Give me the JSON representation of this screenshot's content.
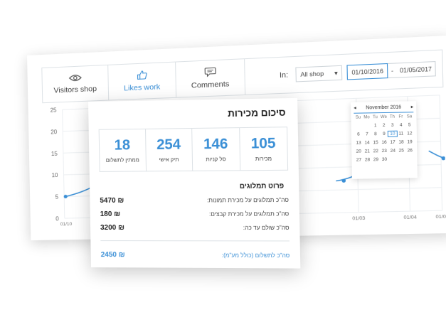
{
  "tabs": [
    {
      "label": "Visitors shop",
      "icon": "eye-icon"
    },
    {
      "label": "Likes work",
      "icon": "thumbs-up-icon"
    },
    {
      "label": "Comments",
      "icon": "comment-icon"
    }
  ],
  "filter": {
    "in_label": "In:",
    "shop_select": "All shop",
    "date_from": "01/10/2016",
    "date_separator": "-",
    "date_to": "01/05/2017"
  },
  "calendar": {
    "month": "November 2016",
    "prev": "◂",
    "next": "▸",
    "days_of_week": [
      "Su",
      "Mo",
      "Tu",
      "We",
      "Th",
      "Fr",
      "Sa"
    ],
    "dates": [
      "",
      "",
      "1",
      "2",
      "3",
      "4",
      "5",
      "6",
      "7",
      "8",
      "9",
      "10",
      "11",
      "12",
      "13",
      "14",
      "15",
      "16",
      "17",
      "18",
      "19",
      "20",
      "21",
      "22",
      "23",
      "24",
      "25",
      "26",
      "27",
      "28",
      "29",
      "30",
      "",
      "",
      ""
    ],
    "selected": "10"
  },
  "chart_data": {
    "type": "line",
    "y_ticks": [
      "25",
      "20",
      "15",
      "10",
      "5",
      "0"
    ],
    "x_ticks": [
      "01/10",
      "01/03",
      "01/04",
      "01/05"
    ],
    "ylim": [
      0,
      25
    ],
    "color": "#3a8fd6"
  },
  "summary": {
    "title": "סיכום מכירות",
    "stats": [
      {
        "value": "105",
        "label": "מכירות"
      },
      {
        "value": "146",
        "label": "סל קניות"
      },
      {
        "value": "254",
        "label": "תיק אישי"
      },
      {
        "value": "18",
        "label": "ממתין לתשלום"
      }
    ],
    "breakdown_title": "פרוט תמלוגים",
    "rows": [
      {
        "label": "סה\"כ תמלוגים על מכירת תמונות:",
        "amount": "5470 ₪"
      },
      {
        "label": "סה\"כ תמלוגים על מכירת קבצים:",
        "amount": "180 ₪"
      },
      {
        "label": "סה\"כ שולם עד כה:",
        "amount": "3200 ₪"
      }
    ],
    "total_label": "סה\"כ לתשלום (כולל מע\"מ):",
    "total_amount": "2450 ₪"
  }
}
